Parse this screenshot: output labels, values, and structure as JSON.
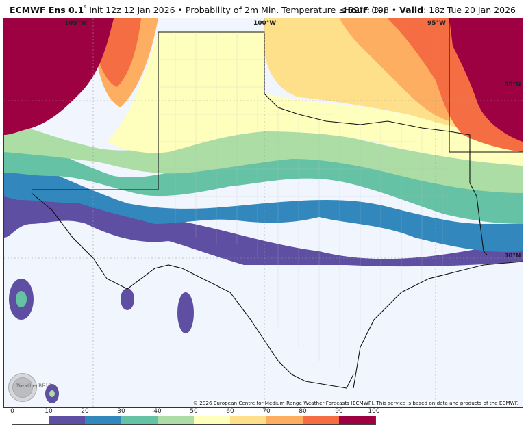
{
  "header": {
    "model": "ECMWF Ens 0.1",
    "model_degree": "°",
    "init": "Init 12z 12 Jan 2026",
    "separator": "•",
    "product": "Probability of 2m Min. Temperature ≤ 32°F (%)",
    "hour_label": "Hour",
    "hour_value": ": 198",
    "valid_label": "Valid",
    "valid_value": ": 18z Tue 20 Jan 2026"
  },
  "map": {
    "region": "Texas / Southern Plains / Northern Mexico",
    "longitude_labels": [
      "105°W",
      "100°W",
      "95°W"
    ],
    "latitude_labels": [
      "35°N",
      "30°N"
    ],
    "copyright": "© 2026 European Centre for Medium-Range Weather Forecasts (ECMWF). This service is based on data and products of the ECMWF.",
    "watermark": "WeatherBELL"
  },
  "colorbar": {
    "ticks": [
      "0",
      "10",
      "20",
      "30",
      "40",
      "50",
      "60",
      "70",
      "80",
      "90",
      "100"
    ],
    "colors": [
      "#ffffff",
      "#5e4fa2",
      "#3288bd",
      "#66c2a5",
      "#abdda4",
      "#fefebd",
      "#fee08b",
      "#fdae61",
      "#f46d43",
      "#9e0142"
    ]
  },
  "chart_data": {
    "type": "heatmap",
    "title": "ECMWF Ens 0.1° Init 12z 12 Jan 2026 • Probability of 2m Min. Temperature ≤ 32°F (%)",
    "subtitle": "Hour: 198 • Valid: 18z Tue 20 Jan 2026",
    "colorbar": {
      "min": 0,
      "max": 100,
      "step": 10,
      "ticks": [
        0,
        10,
        20,
        30,
        40,
        50,
        60,
        70,
        80,
        90,
        100
      ],
      "bins": [
        {
          "range": [
            0,
            10
          ],
          "color": "#ffffff"
        },
        {
          "range": [
            10,
            20
          ],
          "color": "#5e4fa2"
        },
        {
          "range": [
            20,
            30
          ],
          "color": "#3288bd"
        },
        {
          "range": [
            30,
            40
          ],
          "color": "#66c2a5"
        },
        {
          "range": [
            40,
            50
          ],
          "color": "#abdda4"
        },
        {
          "range": [
            50,
            60
          ],
          "color": "#fefebd"
        },
        {
          "range": [
            60,
            70
          ],
          "color": "#fee08b"
        },
        {
          "range": [
            70,
            80
          ],
          "color": "#fdae61"
        },
        {
          "range": [
            80,
            90
          ],
          "color": "#f46d43"
        },
        {
          "range": [
            90,
            100
          ],
          "color": "#9e0142"
        }
      ]
    },
    "regions": [
      {
        "area": "Northern New Mexico / Colorado mountains",
        "probability": "90-100"
      },
      {
        "area": "Texas Panhandle",
        "probability": "50-70"
      },
      {
        "area": "Oklahoma",
        "probability": "60-80"
      },
      {
        "area": "Arkansas / NE corner",
        "probability": "80-100"
      },
      {
        "area": "North-central Texas",
        "probability": "20-40"
      },
      {
        "area": "Central Texas (I-10 corridor)",
        "probability": "10-20"
      },
      {
        "area": "South Texas / Gulf Coast / Mexico",
        "probability": "0-10"
      }
    ],
    "axes": {
      "lon_labels": [
        "105°W",
        "100°W",
        "95°W"
      ],
      "lat_labels": [
        "35°N",
        "30°N"
      ]
    }
  }
}
